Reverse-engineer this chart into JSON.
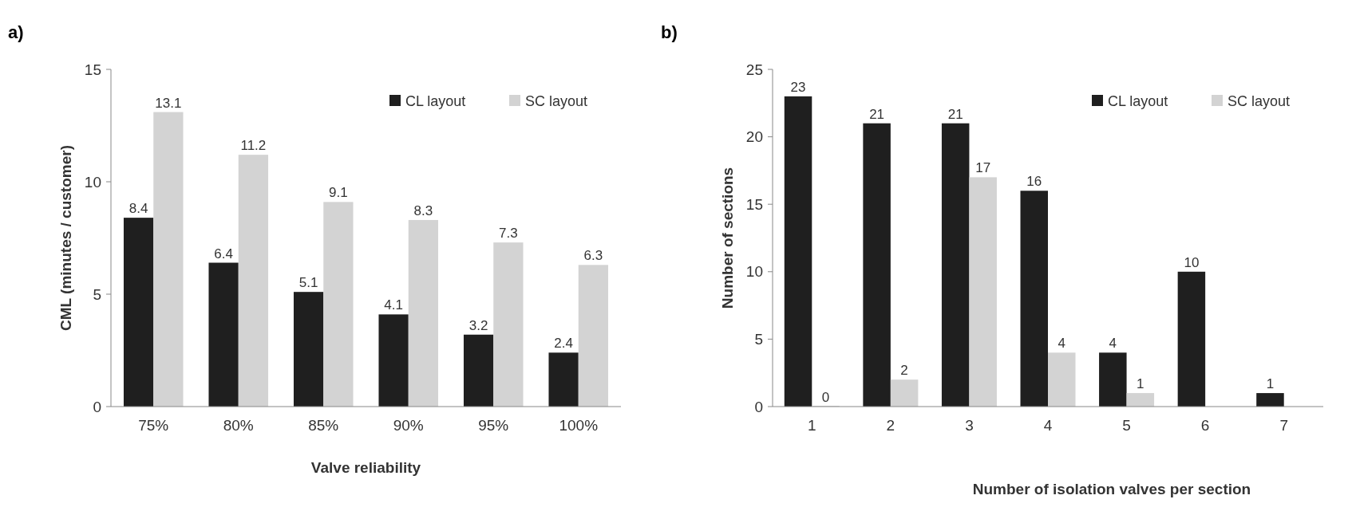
{
  "chart_data": [
    {
      "type": "bar",
      "title": "a)",
      "xlabel": "Valve reliability",
      "ylabel": "CML (minutes / customer)",
      "categories": [
        "75%",
        "80%",
        "85%",
        "90%",
        "95%",
        "100%"
      ],
      "series": [
        {
          "name": "CL layout",
          "color": "#1f1f1f",
          "values": [
            8.4,
            6.4,
            5.1,
            4.1,
            3.2,
            2.4
          ]
        },
        {
          "name": "SC layout",
          "color": "#d3d3d3",
          "values": [
            13.1,
            11.2,
            9.1,
            8.3,
            7.3,
            6.3
          ]
        }
      ],
      "ylim": [
        0,
        15
      ],
      "yticks": [
        0,
        5,
        10,
        15
      ],
      "data_labels": true,
      "legend": "top right",
      "grid": false
    },
    {
      "type": "bar",
      "title": "b)",
      "xlabel": "Number of isolation valves per section",
      "ylabel": "Number of sections",
      "categories": [
        "1",
        "2",
        "3",
        "4",
        "5",
        "6",
        "7"
      ],
      "series": [
        {
          "name": "CL layout",
          "color": "#1f1f1f",
          "values": [
            23,
            21,
            21,
            16,
            4,
            10,
            1
          ]
        },
        {
          "name": "SC layout",
          "color": "#d3d3d3",
          "values": [
            0,
            2,
            17,
            4,
            1,
            null,
            null
          ]
        }
      ],
      "ylim": [
        0,
        25
      ],
      "yticks": [
        0,
        5,
        10,
        15,
        20,
        25
      ],
      "data_labels": true,
      "legend": "top right",
      "grid": false
    }
  ]
}
